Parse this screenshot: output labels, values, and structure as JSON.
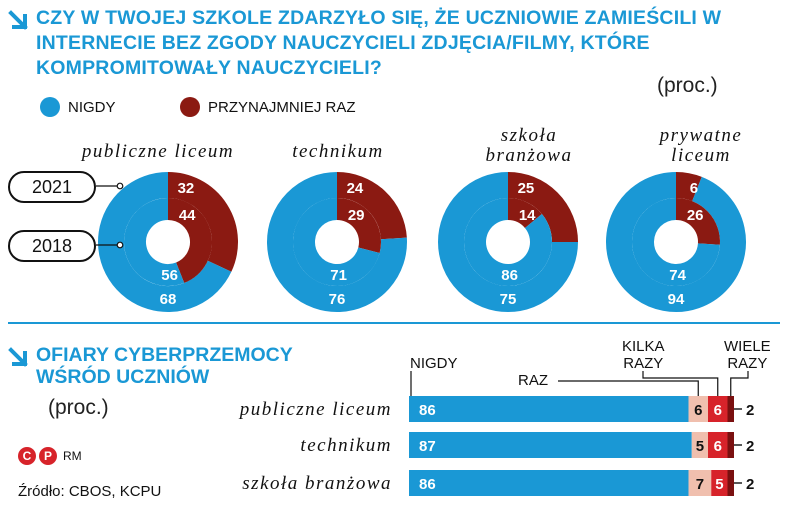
{
  "title": "CZY W TWOJEJ SZKOLE ZDARZYŁO SIĘ, ŻE UCZNIOWIE ZAMIEŚCILI W INTERNECIE BEZ ZGODY NAUCZYCIELI ZDJĘCIA/FILMY, KTÓRE KOMPROMITOWAŁY NAUCZYCIELI?",
  "unit_top": "(proc.)",
  "colors": {
    "blue": "#1a98d5",
    "darkred": "#8b1a12",
    "red": "#d7232a",
    "pink": "#f0bfae",
    "maroon": "#7a1010"
  },
  "legend": [
    {
      "label": "NIGDY",
      "color": "#1a98d5"
    },
    {
      "label": "PRZYNAJMNIEJ RAZ",
      "color": "#8b1a12"
    }
  ],
  "year_outer": "2021",
  "year_inner": "2018",
  "subtitle_line1": "OFIARY CYBERPRZEMOCY",
  "subtitle_line2": "WŚRÓD UCZNIÓW",
  "unit_bottom": "(proc.)",
  "bar_headers": {
    "nigdy": "NIGDY",
    "raz": "RAZ",
    "kilka": "KILKA\nRAZY",
    "wiele": "WIELE\nRAZY"
  },
  "copyright": "RM",
  "source": "Źródło: CBOS, KCPU",
  "chart_data": [
    {
      "type": "pie",
      "series_names": [
        "NIGDY",
        "PRZYNAJMNIEJ RAZ"
      ],
      "categories": [
        "publiczne liceum",
        "technikum",
        "szkoła branżowa",
        "prywatne liceum"
      ],
      "rings": [
        {
          "name": "2021",
          "nigdy": [
            68,
            76,
            75,
            94
          ],
          "przynajmniej_raz": [
            32,
            24,
            25,
            6
          ]
        },
        {
          "name": "2018",
          "nigdy": [
            56,
            71,
            86,
            74
          ],
          "przynajmniej_raz": [
            44,
            29,
            14,
            26
          ]
        }
      ]
    },
    {
      "type": "bar",
      "orientation": "horizontal-stacked",
      "categories": [
        "publiczne liceum",
        "technikum",
        "szkoła branżowa"
      ],
      "series": [
        {
          "name": "NIGDY",
          "values": [
            86,
            87,
            86
          ]
        },
        {
          "name": "RAZ",
          "values": [
            6,
            5,
            7
          ]
        },
        {
          "name": "KILKA RAZY",
          "values": [
            6,
            6,
            5
          ]
        },
        {
          "name": "WIELE RAZY",
          "values": [
            2,
            2,
            2
          ]
        }
      ]
    }
  ]
}
